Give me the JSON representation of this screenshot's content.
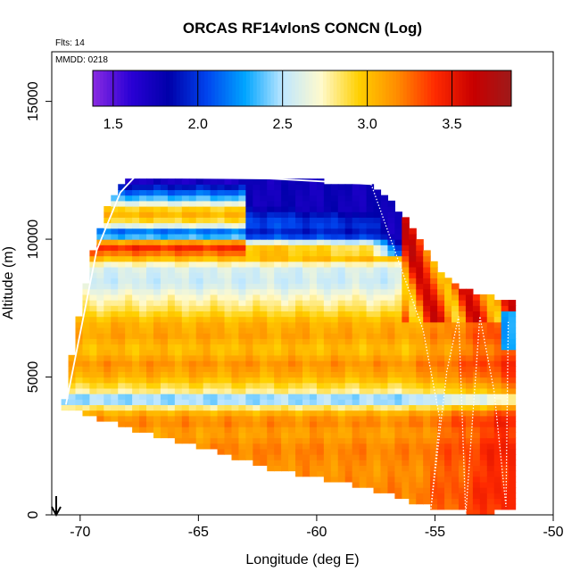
{
  "chart_data": {
    "type": "heatmap",
    "title": "ORCAS RF14vlonS CONCN (Log)",
    "flights_note": "Flts: 14",
    "date_note": "MMDD: 0218",
    "xlabel": "Longitude (deg E)",
    "ylabel": "Altitude (m)",
    "xlim": [
      -71.2,
      -50
    ],
    "ylim": [
      0,
      16800
    ],
    "x_ticks": [
      -70,
      -65,
      -60,
      -55,
      -50
    ],
    "x_tick_labels": [
      "-70",
      "-65",
      "-60",
      "-55",
      "-50"
    ],
    "y_ticks": [
      0,
      5000,
      10000,
      15000
    ],
    "y_tick_labels": [
      "0",
      "5000",
      "10000",
      "15000"
    ],
    "colorbar": {
      "range": [
        1.38,
        3.85
      ],
      "ticks": [
        1.5,
        2.0,
        2.5,
        3.0,
        3.5
      ],
      "tick_labels": [
        "1.5",
        "2.0",
        "2.5",
        "3.0",
        "3.5"
      ],
      "colors": [
        "#8a2be2",
        "#2a00d5",
        "#0000aa",
        "#0044ee",
        "#00a5ff",
        "#bfe7ff",
        "#fffacd",
        "#ffd000",
        "#ff8c00",
        "#ff2a00",
        "#c80000",
        "#9e1a1a"
      ]
    },
    "envelope_upper": [
      [
        -70.7,
        3900
      ],
      [
        -70.2,
        6500
      ],
      [
        -69.5,
        9500
      ],
      [
        -68.8,
        11400
      ],
      [
        -68.0,
        12250
      ],
      [
        -62.0,
        12200
      ],
      [
        -57.6,
        12000
      ],
      [
        -56.5,
        11000
      ],
      [
        -55.5,
        9800
      ],
      [
        -54.8,
        8900
      ],
      [
        -53.8,
        8200
      ],
      [
        -52.5,
        7900
      ],
      [
        -51.6,
        7800
      ],
      [
        -51.6,
        6000
      ],
      [
        -51.9,
        3500
      ],
      [
        -51.9,
        300
      ]
    ],
    "envelope_lower": [
      [
        -70.7,
        3900
      ],
      [
        -69.5,
        3600
      ],
      [
        -67.5,
        3000
      ],
      [
        -65.0,
        2500
      ],
      [
        -62.0,
        1700
      ],
      [
        -58.0,
        1000
      ],
      [
        -55.2,
        300
      ],
      [
        -53.0,
        0
      ],
      [
        -51.9,
        300
      ]
    ],
    "bands": [
      {
        "z": 12200,
        "v": 1.6
      },
      {
        "z": 12000,
        "v": 1.8
      },
      {
        "z": 11500,
        "v": 2.35
      },
      {
        "z": 11000,
        "v": 3.1
      },
      {
        "z": 10600,
        "v": 2.85
      },
      {
        "z": 10200,
        "v": 1.95
      },
      {
        "z": 9800,
        "v": 3.5
      },
      {
        "z": 9400,
        "v": 3.15
      },
      {
        "z": 9000,
        "v": 2.6
      },
      {
        "z": 8400,
        "v": 2.55
      },
      {
        "z": 8000,
        "v": 2.7
      },
      {
        "z": 7500,
        "v": 2.85
      },
      {
        "z": 7000,
        "v": 3.05
      },
      {
        "z": 6500,
        "v": 3.1
      },
      {
        "z": 6000,
        "v": 3.0
      },
      {
        "z": 5500,
        "v": 3.15
      },
      {
        "z": 5000,
        "v": 3.05
      },
      {
        "z": 4500,
        "v": 2.8
      },
      {
        "z": 4200,
        "v": 2.3
      },
      {
        "z": 3800,
        "v": 3.0
      },
      {
        "z": 3400,
        "v": 3.2
      },
      {
        "z": 3000,
        "v": 3.1
      },
      {
        "z": 2400,
        "v": 3.2
      },
      {
        "z": 1600,
        "v": 3.15
      },
      {
        "z": 800,
        "v": 3.2
      },
      {
        "z": 0,
        "v": 3.15
      }
    ],
    "flight_tracks": [
      {
        "style": "solid",
        "points": [
          [
            -70.6,
            4000
          ],
          [
            -69.3,
            9600
          ],
          [
            -68.3,
            11700
          ],
          [
            -67.7,
            12250
          ],
          [
            -62.0,
            12200
          ],
          [
            -57.7,
            12000
          ]
        ]
      },
      {
        "style": "dotted",
        "points": [
          [
            -57.7,
            12000
          ],
          [
            -55.5,
            6700
          ],
          [
            -54.8,
            3500
          ],
          [
            -55.2,
            0
          ]
        ]
      },
      {
        "style": "dotted",
        "points": [
          [
            -55.2,
            0
          ],
          [
            -54.5,
            5200
          ],
          [
            -54.0,
            7200
          ],
          [
            -53.7,
            0
          ]
        ]
      },
      {
        "style": "dotted",
        "points": [
          [
            -53.7,
            0
          ],
          [
            -53.1,
            7200
          ],
          [
            -52.5,
            4500
          ],
          [
            -52.0,
            300
          ],
          [
            -51.9,
            7000
          ]
        ]
      }
    ]
  }
}
